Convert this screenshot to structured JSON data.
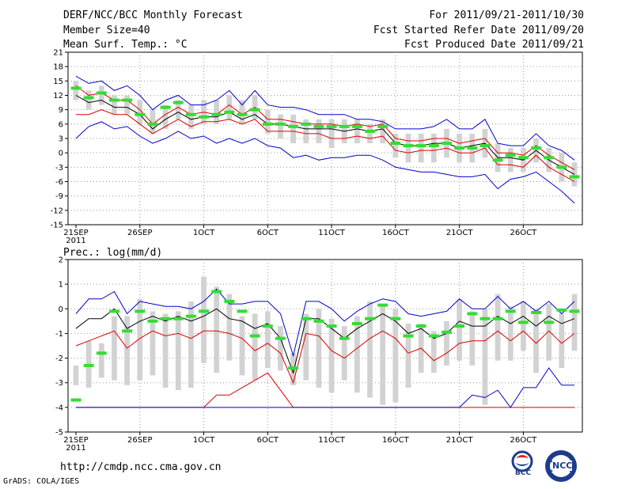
{
  "header": {
    "title": "DERF/NCC/BCC Monthly Forecast",
    "member_size": "Member Size=40",
    "variable": "Mean Surf. Temp.: °C",
    "period": "For 2011/09/21-2011/10/30",
    "start_date": "Fcst Started Refer Date 2011/09/20",
    "produced_date": "Fcst Produced Date 2011/09/21"
  },
  "footer": {
    "url": "http://cmdp.ncc.cma.gov.cn",
    "credit": "GrADS: COLA/IGES",
    "logo_bcc": "BCC",
    "logo_ncc": "NCC"
  },
  "colors": {
    "box": "#d2d2d2",
    "observed": "#33dd33",
    "upper": "#0000cc",
    "mean": "#000000",
    "lower_red": "#dd0000",
    "grid": "#9a9a9a"
  },
  "chart_data": [
    {
      "id": "temperature",
      "type": "line",
      "title": "",
      "ylabel": "Mean Surf. Temp.: °C",
      "ylim": [
        -15,
        21
      ],
      "yticks": [
        -15,
        -12,
        -9,
        -6,
        -3,
        0,
        3,
        6,
        9,
        12,
        15,
        18,
        21
      ],
      "x_days": 40,
      "xticks": [
        {
          "day": 1,
          "label": "21SEP",
          "sub": "2011"
        },
        {
          "day": 6,
          "label": "26SEP"
        },
        {
          "day": 11,
          "label": "1OCT"
        },
        {
          "day": 16,
          "label": "6OCT"
        },
        {
          "day": 21,
          "label": "11OCT"
        },
        {
          "day": 26,
          "label": "16OCT"
        },
        {
          "day": 31,
          "label": "21OCT"
        },
        {
          "day": 36,
          "label": "26OCT"
        }
      ],
      "series": [
        {
          "name": "max",
          "color": "#0000cc",
          "values": [
            16,
            14.5,
            15,
            13,
            14,
            12,
            9,
            11,
            12,
            10,
            10,
            11,
            13,
            10,
            13,
            10,
            9.5,
            9.5,
            9,
            8,
            8,
            8,
            7,
            7,
            6.5,
            5,
            5,
            5,
            5.5,
            7,
            5,
            5,
            7,
            2,
            1.5,
            1.5,
            4,
            1.5,
            0.5,
            -1.5
          ]
        },
        {
          "name": "p75",
          "color": "#dd0000",
          "values": [
            14,
            12,
            12.5,
            11,
            11,
            9,
            6,
            8,
            9.5,
            8,
            8.5,
            8,
            10,
            8,
            9.5,
            7,
            7,
            6.5,
            6,
            6,
            6,
            5.5,
            6,
            5.5,
            6,
            3,
            2.5,
            2.5,
            3,
            3,
            2,
            2.5,
            3,
            0,
            0,
            -0.5,
            1.5,
            -0.5,
            -2,
            -3.5
          ]
        },
        {
          "name": "mean",
          "color": "#000000",
          "values": [
            12,
            10.5,
            11,
            9.5,
            9.5,
            8,
            5,
            7,
            8.5,
            7,
            7.5,
            7.5,
            8.5,
            7,
            8,
            6,
            6,
            5.5,
            5,
            5,
            5,
            4.5,
            5,
            4.5,
            5,
            2,
            1.5,
            1.5,
            2,
            2,
            1,
            1.5,
            2,
            -1,
            -1,
            -1.5,
            0.5,
            -1.5,
            -3,
            -4.5
          ]
        },
        {
          "name": "p25",
          "color": "#dd0000",
          "values": [
            8,
            8,
            9,
            8,
            8,
            6,
            4,
            5.5,
            7,
            5.5,
            6.5,
            6.5,
            7,
            6,
            7,
            4.5,
            4.5,
            4.5,
            4,
            4,
            3,
            3,
            3.5,
            3,
            3.5,
            0.5,
            0,
            0.5,
            0.5,
            1,
            0,
            0,
            1,
            -2.5,
            -2.5,
            -3,
            -0.5,
            -3,
            -4.5,
            -6
          ]
        },
        {
          "name": "min",
          "color": "#0000cc",
          "values": [
            3,
            5.5,
            6.5,
            5,
            5.5,
            3.5,
            2,
            3,
            4.5,
            3,
            3.5,
            2,
            3,
            2,
            3,
            1.5,
            1,
            -1,
            -0.5,
            -1.5,
            -1,
            -1,
            -0.5,
            -0.5,
            -1.5,
            -3,
            -3.5,
            -4,
            -4,
            -4.5,
            -5,
            -5,
            -4.5,
            -7.5,
            -5.5,
            -5,
            -4,
            -6,
            -8,
            -10.5
          ]
        }
      ],
      "boxes": [
        [
          11,
          15
        ],
        [
          9,
          13
        ],
        [
          10,
          14
        ],
        [
          8,
          12
        ],
        [
          8,
          12
        ],
        [
          6,
          11
        ],
        [
          4,
          9
        ],
        [
          5,
          10
        ],
        [
          7,
          11
        ],
        [
          5,
          10
        ],
        [
          6,
          11
        ],
        [
          6,
          11
        ],
        [
          7,
          12
        ],
        [
          6,
          11
        ],
        [
          7,
          12
        ],
        [
          4,
          9
        ],
        [
          3,
          8
        ],
        [
          2,
          8
        ],
        [
          2,
          7
        ],
        [
          2,
          7
        ],
        [
          1,
          7
        ],
        [
          2,
          7
        ],
        [
          2,
          7
        ],
        [
          2,
          6
        ],
        [
          2,
          7
        ],
        [
          -1,
          4
        ],
        [
          -2,
          4
        ],
        [
          -2,
          4
        ],
        [
          -2,
          4
        ],
        [
          -1,
          5
        ],
        [
          -2,
          4
        ],
        [
          -2,
          4
        ],
        [
          -1,
          5
        ],
        [
          -4,
          2
        ],
        [
          -4,
          1
        ],
        [
          -4,
          1
        ],
        [
          -2,
          3
        ],
        [
          -4,
          1
        ],
        [
          -6,
          0
        ],
        [
          -7,
          -2
        ]
      ],
      "observed": [
        13.5,
        11.5,
        12.5,
        11,
        11,
        8,
        6,
        9.5,
        10.5,
        8,
        7.5,
        8,
        8.5,
        8,
        9,
        6,
        6,
        5.5,
        6,
        5.5,
        5.5,
        5.5,
        5.5,
        4.5,
        5.5,
        2,
        1.5,
        1.5,
        1.5,
        2,
        1,
        1,
        1.5,
        -1.5,
        -0.5,
        -1,
        1,
        -1,
        -3,
        -5
      ]
    },
    {
      "id": "precipitation",
      "type": "line",
      "title": "Prec.: log(mm/d)",
      "ylim": [
        -5,
        2
      ],
      "yticks": [
        -5,
        -4,
        -3,
        -2,
        -1,
        0,
        1,
        2
      ],
      "x_days": 40,
      "xticks": [
        {
          "day": 1,
          "label": "21SEP",
          "sub": "2011"
        },
        {
          "day": 6,
          "label": "26SEP"
        },
        {
          "day": 11,
          "label": "1OCT"
        },
        {
          "day": 16,
          "label": "6OCT"
        },
        {
          "day": 21,
          "label": "11OCT"
        },
        {
          "day": 26,
          "label": "16OCT"
        },
        {
          "day": 31,
          "label": "21OCT"
        },
        {
          "day": 36,
          "label": "26OCT"
        }
      ],
      "series": [
        {
          "name": "max",
          "color": "#0000cc",
          "values": [
            -0.2,
            0.4,
            0.4,
            0.7,
            -0.2,
            0.3,
            0.2,
            0.1,
            0.1,
            0,
            0.3,
            0.8,
            0.2,
            0.2,
            0.3,
            0.3,
            -0.2,
            -1.9,
            0.3,
            0.3,
            0,
            -0.5,
            -0.1,
            0.2,
            0.4,
            0.3,
            -0.2,
            -0.3,
            -0.2,
            -0.1,
            0.4,
            0,
            0,
            0.5,
            0,
            0.3,
            -0.1,
            0.3,
            -0.2,
            0.3
          ]
        },
        {
          "name": "mean",
          "color": "#000000",
          "values": [
            -0.8,
            -0.4,
            -0.4,
            0,
            -0.8,
            -0.5,
            -0.3,
            -0.5,
            -0.3,
            -0.5,
            -0.3,
            0,
            -0.4,
            -0.5,
            -0.8,
            -0.6,
            -1.2,
            -2.6,
            -0.4,
            -0.4,
            -0.8,
            -1.2,
            -0.8,
            -0.5,
            -0.2,
            -0.5,
            -1,
            -0.8,
            -1.2,
            -1,
            -0.5,
            -0.7,
            -0.7,
            -0.3,
            -0.6,
            -0.3,
            -0.7,
            -0.3,
            -0.6,
            -0.4
          ]
        },
        {
          "name": "p25",
          "color": "#dd0000",
          "values": [
            -1.5,
            -1.3,
            -1.1,
            -0.9,
            -1.6,
            -1.2,
            -0.9,
            -1.1,
            -1,
            -1.2,
            -0.9,
            -0.9,
            -1,
            -1.2,
            -1.7,
            -1.4,
            -1.8,
            -3,
            -1,
            -1.1,
            -1.7,
            -2,
            -1.6,
            -1.2,
            -0.9,
            -1.2,
            -1.8,
            -1.6,
            -2.1,
            -1.8,
            -1.4,
            -1.3,
            -1.3,
            -0.9,
            -1.3,
            -0.9,
            -1.4,
            -0.9,
            -1.4,
            -1
          ]
        },
        {
          "name": "min",
          "color": "#dd0000",
          "values": [
            -4,
            -4,
            -4,
            -4,
            -4,
            -4,
            -4,
            -4,
            -4,
            -4,
            -4,
            -3.5,
            -3.5,
            -3.2,
            -2.9,
            -2.6,
            -3.3,
            -4,
            -4,
            -4,
            -4,
            -4,
            -4,
            -4,
            -4,
            -4,
            -4,
            -4,
            -4,
            -4,
            -4,
            -4,
            -4,
            -4,
            -4,
            -4,
            -4,
            -4,
            -4,
            -4
          ]
        },
        {
          "name": "low_blue",
          "color": "#0000cc",
          "values": [
            -4,
            -4,
            -4,
            -4,
            -4,
            -4,
            -4,
            -4,
            -4,
            -4,
            -4,
            -4,
            -4,
            -4,
            -4,
            -4,
            -4,
            -4,
            -4,
            -4,
            -4,
            -4,
            -4,
            -4,
            -4,
            -4,
            -4,
            -4,
            -4,
            -4,
            -4,
            -3.5,
            -3.6,
            -3.3,
            -4,
            -3.2,
            -3.2,
            -2.4,
            -3.1,
            -3.1
          ]
        }
      ],
      "boxes": [
        [
          -3.1,
          -2.3
        ],
        [
          -3.2,
          -1.3
        ],
        [
          -2.8,
          -1.4
        ],
        [
          -2.9,
          -0.3
        ],
        [
          -3.1,
          -0.3
        ],
        [
          -2.9,
          0.4
        ],
        [
          -2.7,
          -0.1
        ],
        [
          -3.2,
          -0.2
        ],
        [
          -3.3,
          -0.1
        ],
        [
          -3.2,
          0.3
        ],
        [
          -2.2,
          1.3
        ],
        [
          -2.6,
          0.9
        ],
        [
          -2.1,
          0.6
        ],
        [
          -2.7,
          -0.3
        ],
        [
          -2.9,
          -0.2
        ],
        [
          -2.4,
          -0.1
        ],
        [
          -2.5,
          -0.7
        ],
        [
          -3.1,
          -1.8
        ],
        [
          -2.9,
          -0.2
        ],
        [
          -3.2,
          0
        ],
        [
          -3.4,
          -0.4
        ],
        [
          -2.9,
          -0.7
        ],
        [
          -3.4,
          -0.3
        ],
        [
          -3.6,
          0.3
        ],
        [
          -3.9,
          0.1
        ],
        [
          -3.8,
          0
        ],
        [
          -3.2,
          -0.6
        ],
        [
          -2.6,
          -0.6
        ],
        [
          -2.6,
          -0.9
        ],
        [
          -2.3,
          -0.5
        ],
        [
          -2.1,
          0.4
        ],
        [
          -2.3,
          -0.1
        ],
        [
          -3.9,
          0
        ],
        [
          -2.1,
          0.6
        ],
        [
          -2.1,
          0.1
        ],
        [
          -1.7,
          0.3
        ],
        [
          -2.6,
          0
        ],
        [
          -2.1,
          0.2
        ],
        [
          -2.4,
          -0.2
        ],
        [
          -1.7,
          0.6
        ]
      ],
      "observed": [
        -3.7,
        -2.3,
        -1.8,
        -0.1,
        -0.9,
        -0.1,
        -0.5,
        -0.4,
        -0.4,
        -0.3,
        -0.1,
        0.7,
        0.3,
        -0.1,
        -1.1,
        -0.7,
        -1.2,
        -2.4,
        -0.4,
        -0.5,
        -0.7,
        -1.2,
        -0.6,
        -0.4,
        0.15,
        -0.4,
        -1.1,
        -0.7,
        -1.1,
        -0.95,
        -0.7,
        -0.2,
        -0.4,
        -0.4,
        -0.1,
        -0.55,
        -0.15,
        -0.55,
        -0.05,
        -0.1
      ]
    }
  ]
}
